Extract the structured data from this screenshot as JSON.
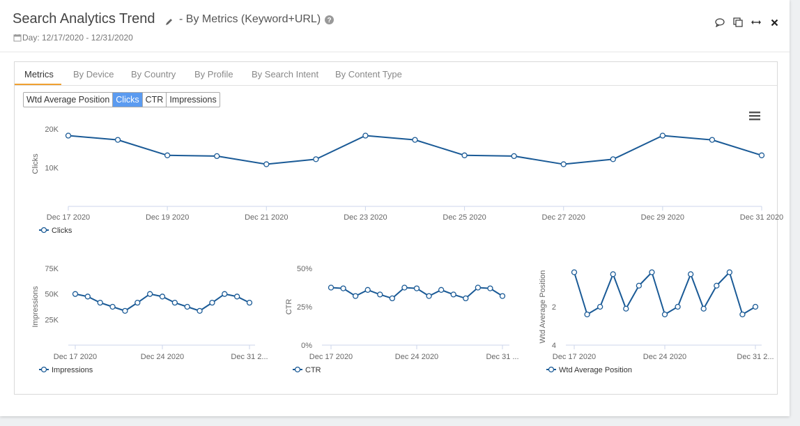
{
  "header": {
    "title": "Search Analytics Trend",
    "subtitle": "- By Metrics (Keyword+URL)",
    "date_range": "Day: 12/17/2020 - 12/31/2020",
    "icons": [
      "comment-icon",
      "copy-icon",
      "expand-icon",
      "close-icon"
    ]
  },
  "tabs": [
    "Metrics",
    "By Device",
    "By Country",
    "By Profile",
    "By Search Intent",
    "By Content Type"
  ],
  "active_tab": "Metrics",
  "metric_toggle": {
    "options": [
      "Wtd Average Position",
      "Clicks",
      "CTR",
      "Impressions"
    ],
    "selected": "Clicks"
  },
  "colors": {
    "series": "#1a5a96",
    "accent_tab": "#f0a030",
    "toggle_selected": "#5b9bf0"
  },
  "chart_data": [
    {
      "id": "main",
      "type": "line",
      "x": [
        "Dec 17 2020",
        "Dec 18 2020",
        "Dec 19 2020",
        "Dec 20 2020",
        "Dec 21 2020",
        "Dec 22 2020",
        "Dec 23 2020",
        "Dec 24 2020",
        "Dec 25 2020",
        "Dec 26 2020",
        "Dec 27 2020",
        "Dec 28 2020",
        "Dec 29 2020",
        "Dec 30 2020",
        "Dec 31 2020"
      ],
      "x_tick_labels": [
        "Dec 17 2020",
        "Dec 19 2020",
        "Dec 21 2020",
        "Dec 23 2020",
        "Dec 25 2020",
        "Dec 27 2020",
        "Dec 29 2020",
        "Dec 31 2020"
      ],
      "series": [
        {
          "name": "Clicks",
          "values": [
            18300,
            17200,
            13200,
            13000,
            10900,
            12200,
            18300,
            17200,
            13200,
            13000,
            10900,
            12200,
            18300,
            17200,
            13200
          ]
        }
      ],
      "ylabel": "Clicks",
      "y_ticks": [
        "10K",
        "20K"
      ],
      "y_tick_values": [
        10000,
        20000
      ],
      "ylim": [
        0,
        22000
      ],
      "legend": "Clicks",
      "legend_position": "bottom-left"
    },
    {
      "id": "impressions",
      "type": "line",
      "x": [
        "Dec 17 2020",
        "Dec 18 2020",
        "Dec 19 2020",
        "Dec 20 2020",
        "Dec 21 2020",
        "Dec 22 2020",
        "Dec 23 2020",
        "Dec 24 2020",
        "Dec 25 2020",
        "Dec 26 2020",
        "Dec 27 2020",
        "Dec 28 2020",
        "Dec 29 2020",
        "Dec 30 2020",
        "Dec 31 2020"
      ],
      "x_tick_labels": [
        "Dec 17 2020",
        "Dec 24 2020",
        "Dec 31 2..."
      ],
      "series": [
        {
          "name": "Impressions",
          "values": [
            50000,
            47500,
            41500,
            37500,
            33500,
            41500,
            50000,
            47500,
            41500,
            37500,
            33500,
            41500,
            50000,
            47500,
            41500
          ]
        }
      ],
      "ylabel": "Impressions",
      "y_ticks": [
        "25K",
        "50K",
        "75K"
      ],
      "y_tick_values": [
        25000,
        50000,
        75000
      ],
      "ylim": [
        0,
        75000
      ],
      "legend": "Impressions",
      "legend_position": "bottom-left"
    },
    {
      "id": "ctr",
      "type": "line",
      "x": [
        "Dec 17 2020",
        "Dec 18 2020",
        "Dec 19 2020",
        "Dec 20 2020",
        "Dec 21 2020",
        "Dec 22 2020",
        "Dec 23 2020",
        "Dec 24 2020",
        "Dec 25 2020",
        "Dec 26 2020",
        "Dec 27 2020",
        "Dec 28 2020",
        "Dec 29 2020",
        "Dec 30 2020",
        "Dec 31 2020"
      ],
      "x_tick_labels": [
        "Dec 17 2020",
        "Dec 24 2020",
        "Dec 31 ..."
      ],
      "series": [
        {
          "name": "CTR",
          "values": [
            37.5,
            37,
            32,
            36,
            33,
            30.5,
            37.5,
            37,
            32,
            36,
            33,
            30.5,
            37.5,
            37,
            32
          ]
        }
      ],
      "ylabel": "CTR",
      "y_ticks": [
        "0%",
        "25%",
        "50%"
      ],
      "y_tick_values": [
        0,
        25,
        50
      ],
      "ylim": [
        0,
        50
      ],
      "legend": "CTR",
      "legend_position": "bottom-left"
    },
    {
      "id": "position",
      "type": "line",
      "x": [
        "Dec 17 2020",
        "Dec 18 2020",
        "Dec 19 2020",
        "Dec 20 2020",
        "Dec 21 2020",
        "Dec 22 2020",
        "Dec 23 2020",
        "Dec 24 2020",
        "Dec 25 2020",
        "Dec 26 2020",
        "Dec 27 2020",
        "Dec 28 2020",
        "Dec 29 2020",
        "Dec 30 2020",
        "Dec 31 2020"
      ],
      "x_tick_labels": [
        "Dec 17 2020",
        "Dec 24 2020",
        "Dec 31 2..."
      ],
      "series": [
        {
          "name": "Wtd Average Position",
          "values": [
            0.2,
            2.4,
            2.0,
            0.3,
            2.1,
            0.9,
            0.2,
            2.4,
            2.0,
            0.3,
            2.1,
            0.9,
            0.2,
            2.4,
            2.0
          ]
        }
      ],
      "ylabel": "Wtd Average Position",
      "y_ticks": [
        "2",
        "4"
      ],
      "y_tick_values": [
        2,
        4
      ],
      "ylim": [
        0,
        4
      ],
      "reversed_y": true,
      "legend": "Wtd Average Position",
      "legend_position": "bottom-left"
    }
  ]
}
